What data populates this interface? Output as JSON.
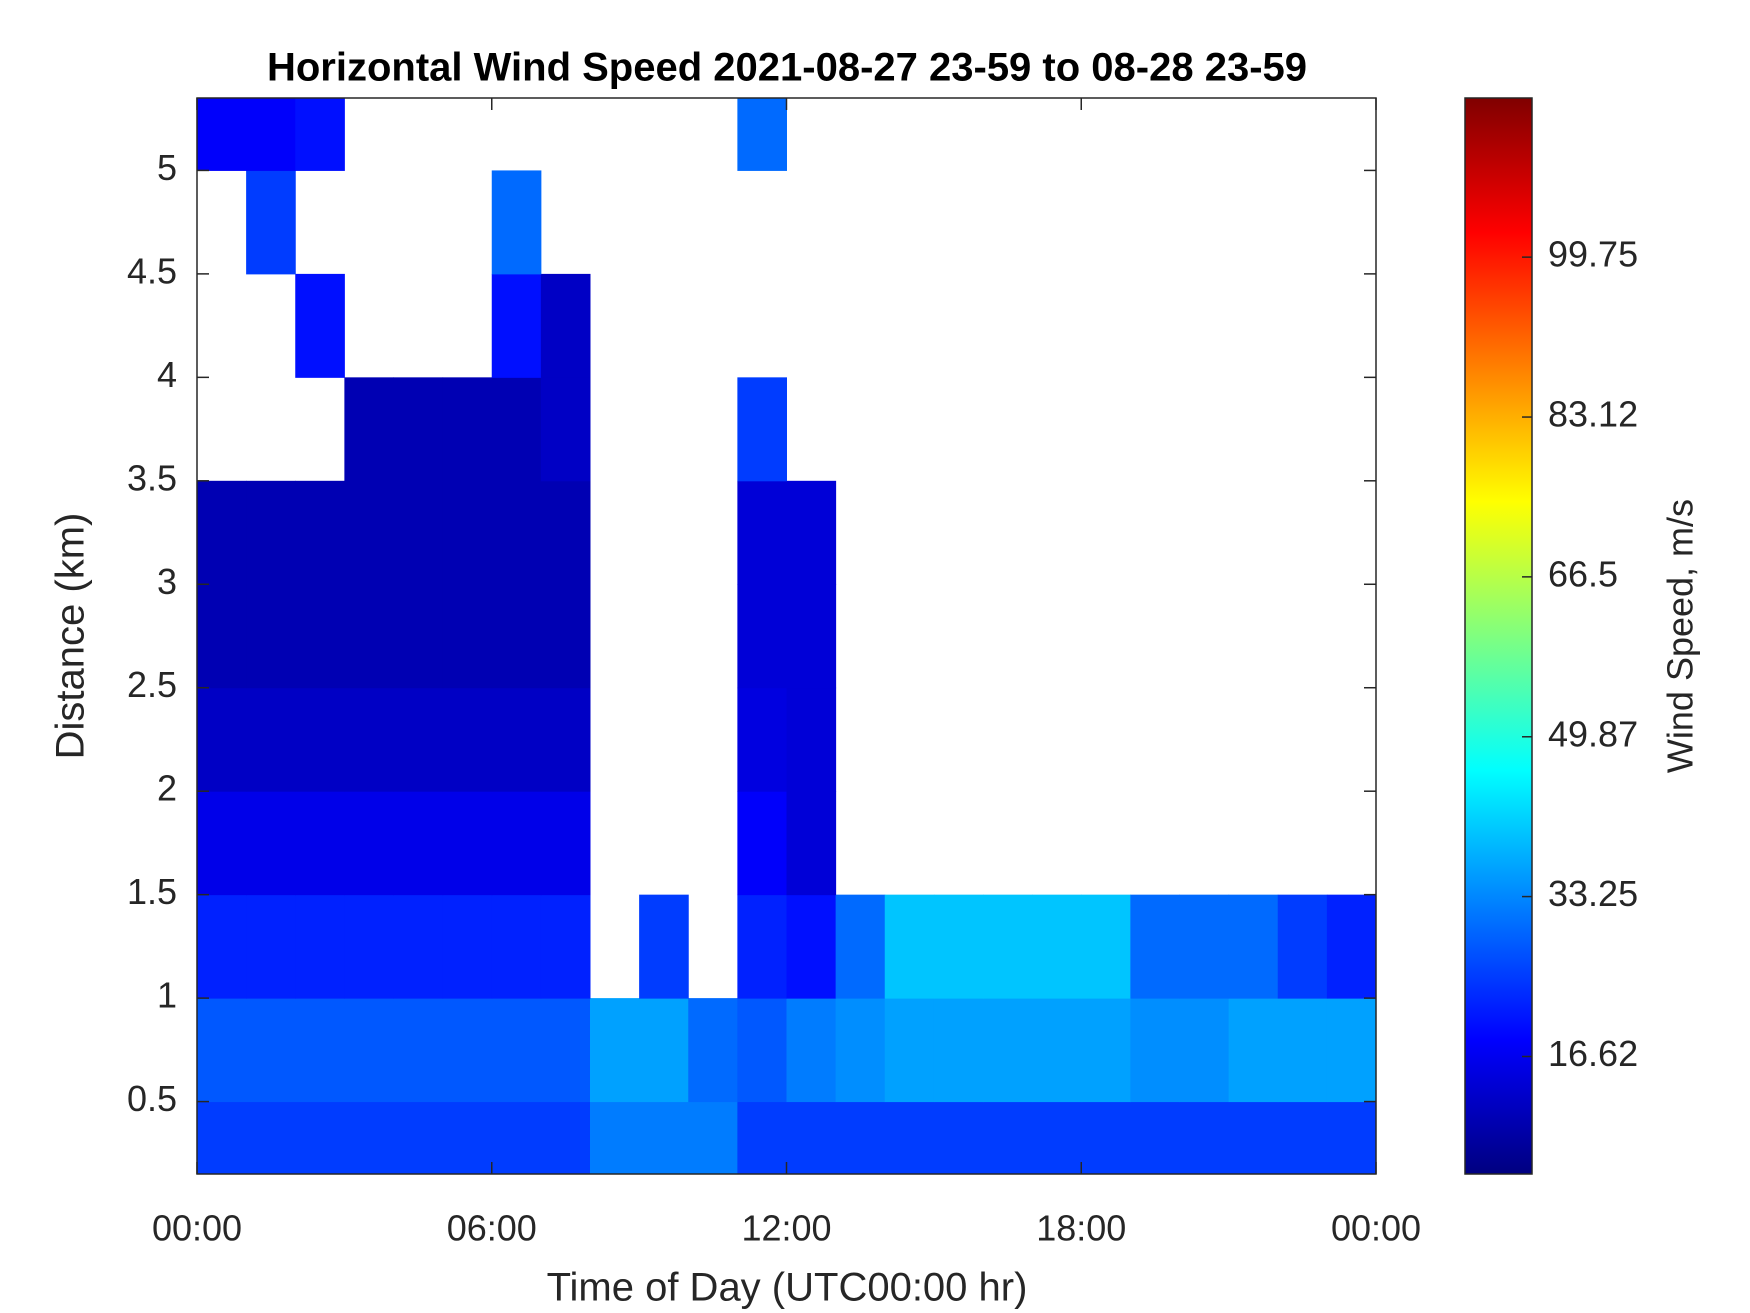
{
  "chart_data": {
    "type": "heatmap",
    "title": "Horizontal Wind Speed 2021-08-27 23-59 to 08-28 23-59",
    "x_label": "Time of Day (UTC00:00 hr)",
    "y_label": "Distance (km)",
    "colorbar_label": "Wind Speed, m/s",
    "colormap": "jet",
    "x": [
      0,
      1,
      2,
      3,
      4,
      5,
      6,
      7,
      8,
      9,
      10,
      11,
      12,
      13,
      14,
      15,
      16,
      17,
      18,
      19,
      20,
      21,
      22,
      23,
      24
    ],
    "y": [
      0.15,
      0.5,
      1.0,
      1.5,
      2.0,
      2.5,
      3.0,
      3.5,
      4.0,
      4.5,
      5.0,
      5.35
    ],
    "values": [
      [
        25,
        25,
        25,
        25,
        25,
        25,
        25,
        25,
        32,
        32,
        32,
        25,
        25,
        25,
        25,
        25,
        25,
        25,
        25,
        25,
        25,
        25,
        25,
        25
      ],
      [
        28,
        28,
        28,
        28,
        28,
        28,
        28,
        28,
        36,
        36,
        30,
        28,
        32,
        34,
        36,
        36,
        36,
        36,
        36,
        34,
        34,
        36,
        36,
        36
      ],
      [
        22,
        22,
        22,
        22,
        22,
        22,
        22,
        22,
        null,
        25,
        null,
        22,
        20,
        30,
        40,
        40,
        40,
        40,
        40,
        30,
        30,
        30,
        25,
        22
      ],
      [
        16,
        16,
        16,
        16,
        16,
        16,
        16,
        16,
        null,
        null,
        null,
        18,
        14,
        null,
        null,
        null,
        null,
        null,
        null,
        null,
        null,
        null,
        null,
        null
      ],
      [
        12,
        12,
        12,
        12,
        12,
        12,
        12,
        12,
        null,
        null,
        null,
        15,
        14,
        null,
        null,
        null,
        null,
        null,
        null,
        null,
        null,
        null,
        null,
        null
      ],
      [
        10,
        10,
        10,
        10,
        10,
        10,
        10,
        10,
        null,
        null,
        null,
        14,
        14,
        null,
        null,
        null,
        null,
        null,
        null,
        null,
        null,
        null,
        null,
        null
      ],
      [
        10,
        10,
        10,
        10,
        10,
        10,
        10,
        10,
        null,
        null,
        null,
        14,
        14,
        null,
        null,
        null,
        null,
        null,
        null,
        null,
        null,
        null,
        null,
        null
      ],
      [
        null,
        null,
        null,
        10,
        10,
        10,
        10,
        12,
        null,
        null,
        null,
        25,
        null,
        null,
        null,
        null,
        null,
        null,
        null,
        null,
        null,
        null,
        null,
        null
      ],
      [
        null,
        null,
        20,
        null,
        null,
        null,
        20,
        12,
        null,
        null,
        null,
        null,
        null,
        null,
        null,
        null,
        null,
        null,
        null,
        null,
        null,
        null,
        null,
        null
      ],
      [
        null,
        25,
        null,
        null,
        null,
        null,
        30,
        null,
        null,
        null,
        null,
        null,
        null,
        null,
        null,
        null,
        null,
        null,
        null,
        null,
        null,
        null,
        null,
        null
      ],
      [
        18,
        18,
        20,
        null,
        null,
        null,
        null,
        null,
        null,
        null,
        null,
        30,
        null,
        null,
        null,
        null,
        null,
        null,
        null,
        null,
        null,
        null,
        null,
        null
      ]
    ],
    "xlim": [
      0,
      24
    ],
    "ylim": [
      0.15,
      5.35
    ],
    "xticks": [
      {
        "value": 0,
        "label": "00:00"
      },
      {
        "value": 6,
        "label": "06:00"
      },
      {
        "value": 12,
        "label": "12:00"
      },
      {
        "value": 18,
        "label": "18:00"
      },
      {
        "value": 24,
        "label": "00:00"
      }
    ],
    "yticks": [
      0.5,
      1,
      1.5,
      2,
      2.5,
      3,
      3.5,
      4,
      4.5,
      5
    ],
    "clim": [
      4.4,
      116.3
    ],
    "cticks": [
      16.62,
      33.25,
      49.87,
      66.5,
      83.12,
      99.75
    ]
  }
}
